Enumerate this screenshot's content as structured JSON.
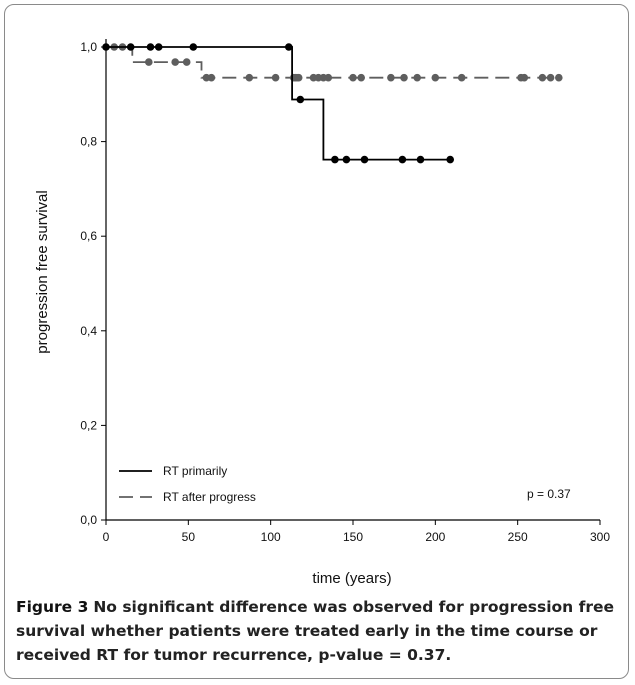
{
  "chart_data": {
    "type": "line",
    "subtype": "kaplan-meier",
    "xlabel": "time (years)",
    "ylabel": "progression free survival",
    "xlim": [
      0,
      300
    ],
    "ylim": [
      0.0,
      1.0
    ],
    "x_ticks": [
      0,
      50,
      100,
      150,
      200,
      250,
      300
    ],
    "y_ticks": [
      0.0,
      0.2,
      0.4,
      0.6,
      0.8,
      1.0
    ],
    "y_tick_labels": [
      "0,0",
      "0,2",
      "0,4",
      "0,6",
      "0,8",
      "1,0"
    ],
    "grid": false,
    "legend_position": "bottom-left",
    "annotation": "p = 0.37",
    "series": [
      {
        "name": "RT primarily",
        "style": "solid",
        "color": "#000000",
        "steps": [
          [
            0,
            1.0
          ],
          [
            113,
            1.0
          ],
          [
            113,
            0.889
          ],
          [
            132,
            0.889
          ],
          [
            132,
            0.762
          ],
          [
            208,
            0.762
          ]
        ],
        "censored": [
          [
            0,
            1.0
          ],
          [
            15,
            1.0
          ],
          [
            27,
            1.0
          ],
          [
            32,
            1.0
          ],
          [
            53,
            1.0
          ],
          [
            111,
            1.0
          ],
          [
            118,
            0.889
          ],
          [
            139,
            0.762
          ],
          [
            146,
            0.762
          ],
          [
            157,
            0.762
          ],
          [
            180,
            0.762
          ],
          [
            191,
            0.762
          ],
          [
            209,
            0.762
          ]
        ]
      },
      {
        "name": "RT after progress",
        "style": "dashed",
        "color": "#5e5e5e",
        "steps": [
          [
            0,
            1.0
          ],
          [
            16,
            1.0
          ],
          [
            16,
            0.968
          ],
          [
            58,
            0.968
          ],
          [
            58,
            0.935
          ],
          [
            276,
            0.935
          ]
        ],
        "censored": [
          [
            5,
            1.0
          ],
          [
            10,
            1.0
          ],
          [
            26,
            0.968
          ],
          [
            42,
            0.968
          ],
          [
            49,
            0.968
          ],
          [
            61,
            0.935
          ],
          [
            64,
            0.935
          ],
          [
            87,
            0.935
          ],
          [
            103,
            0.935
          ],
          [
            114,
            0.935
          ],
          [
            115,
            0.935
          ],
          [
            116,
            0.935
          ],
          [
            117,
            0.935
          ],
          [
            126,
            0.935
          ],
          [
            129,
            0.935
          ],
          [
            132,
            0.935
          ],
          [
            135,
            0.935
          ],
          [
            150,
            0.935
          ],
          [
            155,
            0.935
          ],
          [
            173,
            0.935
          ],
          [
            181,
            0.935
          ],
          [
            189,
            0.935
          ],
          [
            200,
            0.935
          ],
          [
            216,
            0.935
          ],
          [
            252,
            0.935
          ],
          [
            254,
            0.935
          ],
          [
            265,
            0.935
          ],
          [
            270,
            0.935
          ],
          [
            275,
            0.935
          ]
        ]
      }
    ]
  },
  "caption": {
    "label": "Figure 3",
    "text": "No significant difference was observed for progression free survival whether patients were treated early in the time course or received RT for tumor recurrence, p-value = 0.37."
  }
}
